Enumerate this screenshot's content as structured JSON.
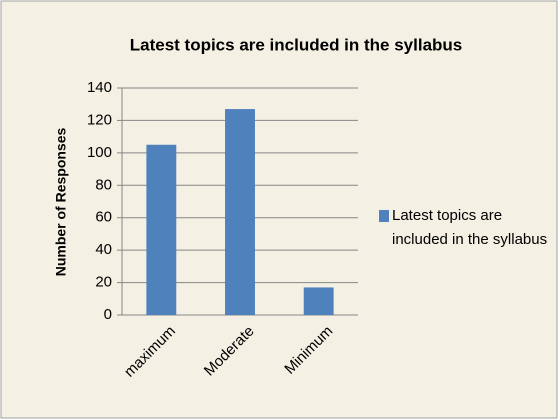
{
  "chart_data": {
    "type": "bar",
    "title": "Latest topics are included in the syllabus",
    "y_label": "Number of Responses",
    "categories": [
      "maximum",
      "Moderate",
      "Minimum"
    ],
    "series": [
      {
        "name": "Latest topics are included in the syllabus",
        "color": "#4f81bd",
        "values": [
          105,
          127,
          17
        ]
      }
    ],
    "ylim": [
      0,
      140
    ],
    "yticks": [
      0,
      20,
      40,
      60,
      80,
      100,
      120,
      140
    ],
    "grid": true,
    "legend": "right"
  }
}
